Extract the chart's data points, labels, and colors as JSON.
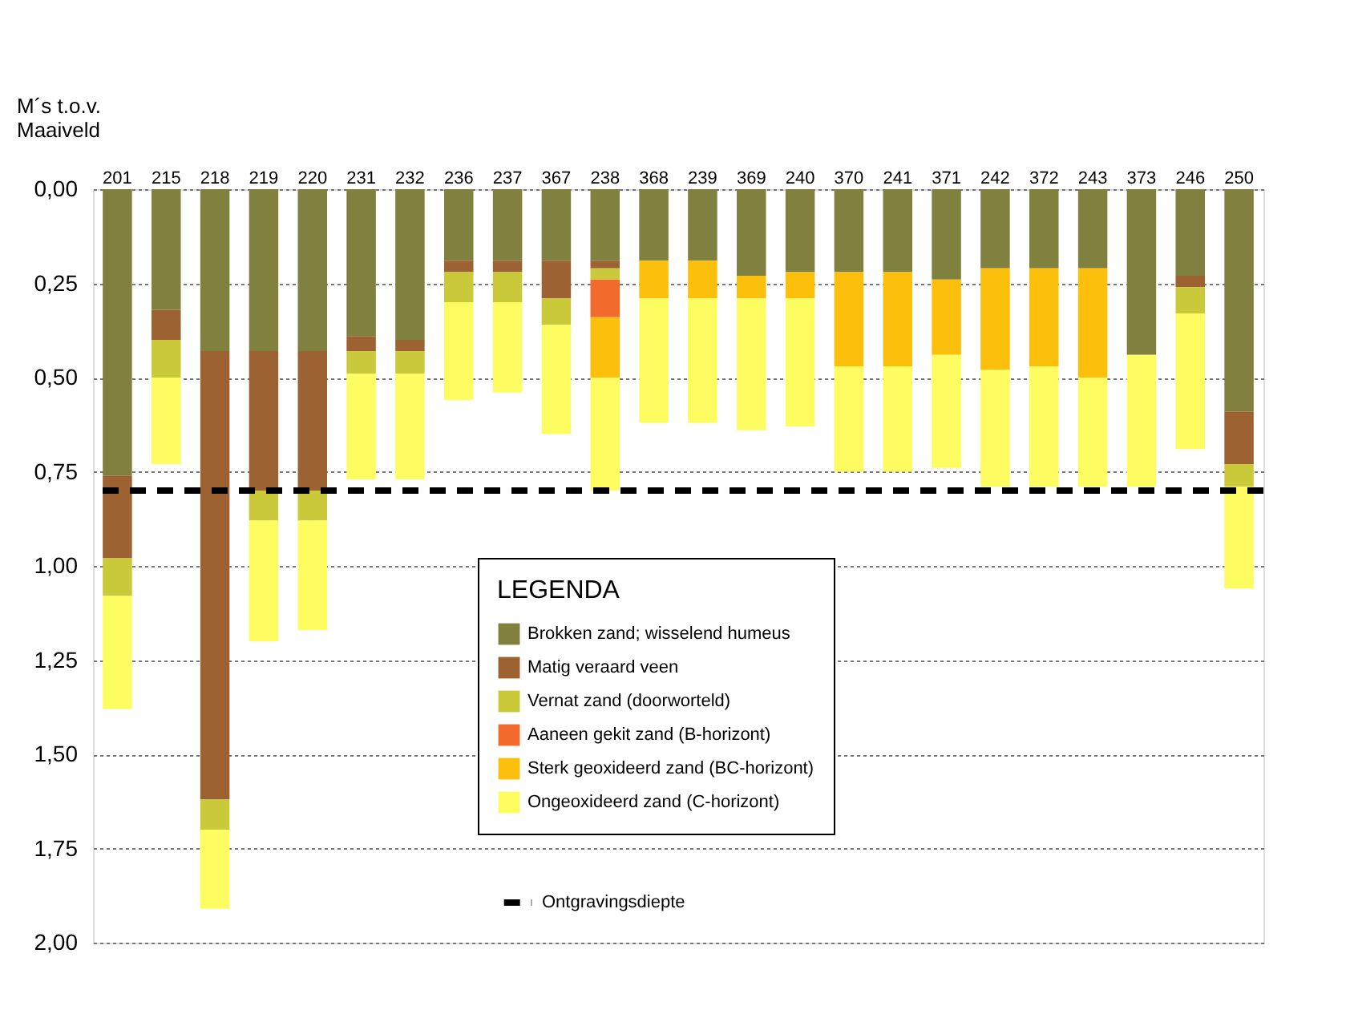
{
  "chart_data": {
    "type": "bar",
    "stacked": true,
    "ylabel": "M´s t.o.v.\nMaaiveld",
    "legend_title": "LEGENDA",
    "categories": [
      "201",
      "215",
      "218",
      "219",
      "220",
      "231",
      "232",
      "236",
      "237",
      "367",
      "238",
      "368",
      "239",
      "369",
      "240",
      "370",
      "241",
      "371",
      "242",
      "372",
      "243",
      "373",
      "246",
      "250"
    ],
    "series": [
      {
        "name": "Brokken zand;  wisselend humeus",
        "color": "#80803f",
        "values": [
          0.76,
          0.32,
          0.43,
          0.43,
          0.43,
          0.39,
          0.4,
          0.19,
          0.19,
          0.19,
          0.19,
          0.19,
          0.19,
          0.23,
          0.22,
          0.22,
          0.22,
          0.24,
          0.21,
          0.21,
          0.21,
          0.44,
          0.23,
          0.59
        ]
      },
      {
        "name": "Matig  veraard veen",
        "color": "#9c6232",
        "values": [
          0.22,
          0.08,
          1.19,
          0.37,
          0.37,
          0.04,
          0.03,
          0.03,
          0.03,
          0.1,
          0.02,
          null,
          null,
          null,
          null,
          null,
          null,
          null,
          null,
          null,
          null,
          null,
          0.03,
          0.14
        ]
      },
      {
        "name": "Vernat zand (doorworteld)",
        "color": "#c9c93a",
        "values": [
          0.1,
          0.1,
          0.08,
          0.08,
          0.08,
          0.06,
          0.06,
          0.08,
          0.08,
          0.07,
          0.03,
          null,
          null,
          null,
          null,
          null,
          null,
          null,
          null,
          null,
          null,
          null,
          0.07,
          0.06
        ]
      },
      {
        "name": "Aaneen gekit zand (B-horizont)",
        "color": "#f26a2c",
        "values": [
          null,
          null,
          null,
          null,
          null,
          null,
          null,
          null,
          null,
          null,
          0.1,
          null,
          null,
          null,
          null,
          null,
          null,
          null,
          null,
          null,
          null,
          null,
          null,
          null
        ]
      },
      {
        "name": "Sterk geoxideerd zand (BC-horizont)",
        "color": "#fbbf0c",
        "values": [
          null,
          null,
          null,
          null,
          null,
          null,
          null,
          null,
          null,
          null,
          0.16,
          0.1,
          0.1,
          0.06,
          0.07,
          0.25,
          0.25,
          0.2,
          0.27,
          0.26,
          0.29,
          null,
          null,
          null
        ]
      },
      {
        "name": "Ongeoxideerd zand (C-horizont)",
        "color": "#fdfd62",
        "values": [
          0.3,
          0.23,
          0.21,
          0.32,
          0.29,
          0.28,
          0.28,
          0.26,
          0.24,
          0.29,
          0.3,
          0.33,
          0.33,
          0.35,
          0.34,
          0.28,
          0.28,
          0.3,
          0.31,
          0.32,
          0.29,
          0.35,
          0.36,
          0.27
        ]
      }
    ],
    "ylim": [
      2.0,
      0.0
    ],
    "yticks": [
      {
        "value": 0,
        "label": "0,00"
      },
      {
        "value": 0.25,
        "label": "0,25"
      },
      {
        "value": 0.5,
        "label": "0,50"
      },
      {
        "value": 0.75,
        "label": "0,75"
      },
      {
        "value": 1.0,
        "label": "1,00"
      },
      {
        "value": 1.25,
        "label": "1,25"
      },
      {
        "value": 1.5,
        "label": "1,50"
      },
      {
        "value": 1.75,
        "label": "1,75"
      },
      {
        "value": 2.0,
        "label": "2,00"
      }
    ],
    "ref_lines": [
      {
        "axis": "y",
        "value": 0.8,
        "label": "Ontgravingsdiepte",
        "color": "#000000",
        "line_style": "dashed"
      }
    ],
    "grid": "y",
    "legend": "bottom"
  }
}
